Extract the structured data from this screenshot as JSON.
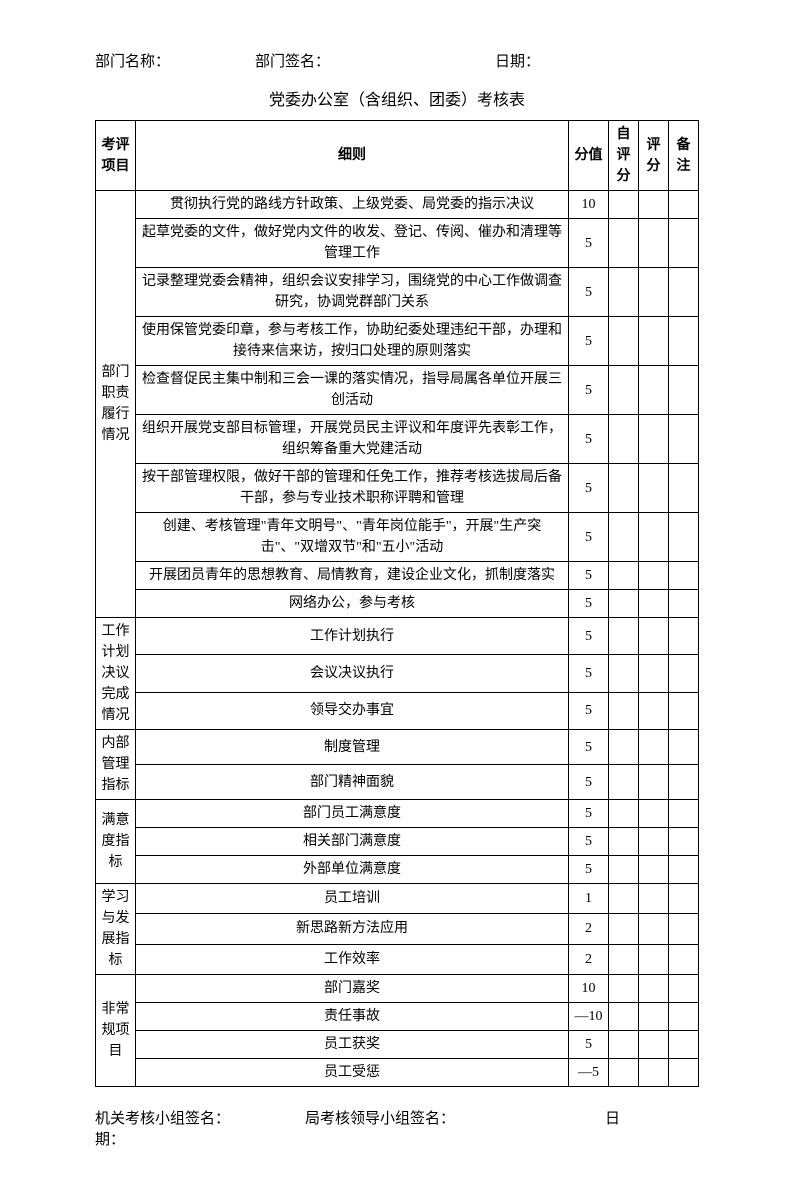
{
  "header": {
    "dept_name_label": "部门名称：",
    "dept_sign_label": "部门签名：",
    "date_label": "日期："
  },
  "title": "党委办公室（含组织、团委）考核表",
  "columns": {
    "category": "考评项目",
    "detail": "细则",
    "score": "分值",
    "self_score": "自评分",
    "eval_score": "评分",
    "remark": "备注"
  },
  "sections": [
    {
      "category": "部门职责履行情况",
      "rows": [
        {
          "detail": "贯彻执行党的路线方针政策、上级党委、局党委的指示决议",
          "score": "10"
        },
        {
          "detail": "起草党委的文件，做好党内文件的收发、登记、传阅、催办和清理等管理工作",
          "score": "5"
        },
        {
          "detail": "记录整理党委会精神，组织会议安排学习，围绕党的中心工作做调查研究，协调党群部门关系",
          "score": "5"
        },
        {
          "detail": "使用保管党委印章，参与考核工作，协助纪委处理违纪干部，办理和接待来信来访，按归口处理的原则落实",
          "score": "5"
        },
        {
          "detail": "检查督促民主集中制和三会一课的落实情况，指导局属各单位开展三创活动",
          "score": "5"
        },
        {
          "detail": "组织开展党支部目标管理，开展党员民主评议和年度评先表彰工作，组织筹备重大党建活动",
          "score": "5"
        },
        {
          "detail": "按干部管理权限，做好干部的管理和任免工作，推荐考核选拔局后备干部，参与专业技术职称评聘和管理",
          "score": "5"
        },
        {
          "detail": "创建、考核管理\"青年文明号\"、\"青年岗位能手\"，开展\"生产突击\"、\"双增双节\"和\"五小\"活动",
          "score": "5"
        },
        {
          "detail": "开展团员青年的思想教育、局情教育，建设企业文化，抓制度落实",
          "score": "5"
        },
        {
          "detail": "网络办公，参与考核",
          "score": "5"
        }
      ]
    },
    {
      "category": "工作计划决议完成情况",
      "rows": [
        {
          "detail": "工作计划执行",
          "score": "5"
        },
        {
          "detail": "会议决议执行",
          "score": "5"
        },
        {
          "detail": "领导交办事宜",
          "score": "5"
        }
      ]
    },
    {
      "category": "内部管理指标",
      "rows": [
        {
          "detail": "制度管理",
          "score": "5"
        },
        {
          "detail": "部门精神面貌",
          "score": "5"
        }
      ]
    },
    {
      "category": "满意度指标",
      "rows": [
        {
          "detail": "部门员工满意度",
          "score": "5"
        },
        {
          "detail": "相关部门满意度",
          "score": "5"
        },
        {
          "detail": "外部单位满意度",
          "score": "5"
        }
      ]
    },
    {
      "category": "学习与发展指标",
      "rows": [
        {
          "detail": "员工培训",
          "score": "1"
        },
        {
          "detail": "新思路新方法应用",
          "score": "2"
        },
        {
          "detail": "工作效率",
          "score": "2"
        }
      ]
    },
    {
      "category": "非常规项目",
      "rows": [
        {
          "detail": "部门嘉奖",
          "score": "10"
        },
        {
          "detail": "责任事故",
          "score": "—10"
        },
        {
          "detail": "员工获奖",
          "score": "5"
        },
        {
          "detail": "员工受惩",
          "score": "—5"
        }
      ]
    }
  ],
  "footer": {
    "agency_sign_label": "机关考核小组签名：",
    "bureau_sign_label": "局考核领导小组签名：",
    "date_label": "日",
    "date_label2": "期："
  }
}
